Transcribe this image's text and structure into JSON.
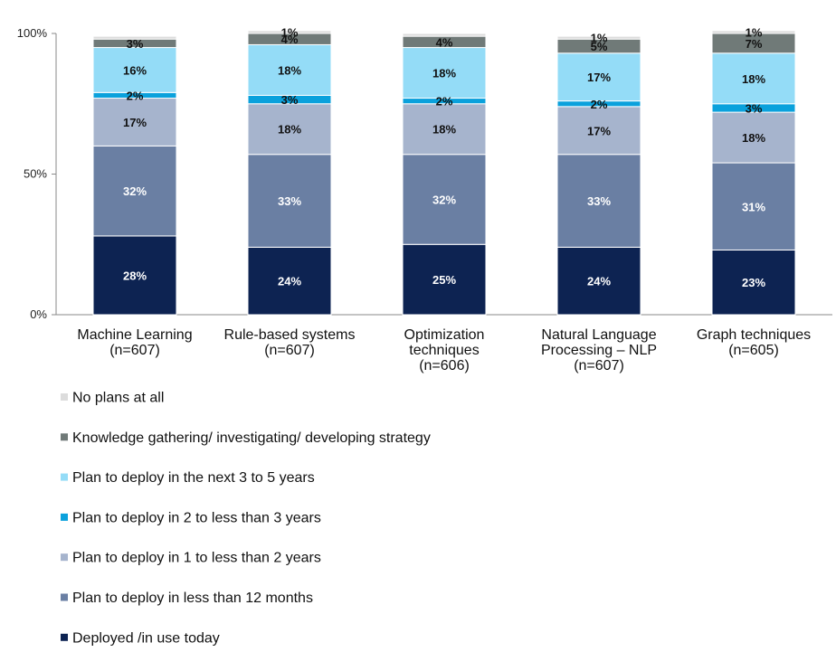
{
  "chart_data": {
    "type": "bar",
    "stacked": true,
    "orientation": "vertical",
    "legend_placement": "bottom-left",
    "grid": false,
    "ylim": [
      0,
      100
    ],
    "yticks": [
      {
        "value": 0,
        "label": "0%"
      },
      {
        "value": 50,
        "label": "50%"
      },
      {
        "value": 100,
        "label": "100%"
      }
    ],
    "categories": [
      [
        "Machine Learning",
        "(n=607)"
      ],
      [
        "Rule-based systems",
        "(n=607)"
      ],
      [
        "Optimization",
        "techniques",
        "(n=606)"
      ],
      [
        "Natural Language",
        "Processing – NLP",
        "(n=607)"
      ],
      [
        "Graph techniques",
        "(n=605)"
      ]
    ],
    "series": [
      {
        "name": "Deployed /in use today",
        "color": "#0d2352",
        "label_color": "#ffffff",
        "values": [
          28,
          24,
          25,
          24,
          23
        ],
        "labels": [
          "28%",
          "24%",
          "25%",
          "24%",
          "23%"
        ]
      },
      {
        "name": "Plan to deploy in less than 12 months",
        "color": "#6a7fa3",
        "label_color": "#ffffff",
        "values": [
          32,
          33,
          32,
          33,
          31
        ],
        "labels": [
          "32%",
          "33%",
          "32%",
          "33%",
          "31%"
        ]
      },
      {
        "name": "Plan to deploy in 1 to less than 2 years",
        "color": "#a6b4cd",
        "label_color": "#111111",
        "values": [
          17,
          18,
          18,
          17,
          18
        ],
        "labels": [
          "17%",
          "18%",
          "18%",
          "17%",
          "18%"
        ]
      },
      {
        "name": "Plan to deploy in 2 to less than 3 years",
        "color": "#0aa1dc",
        "label_color": "#111111",
        "values": [
          2,
          3,
          2,
          2,
          3
        ],
        "labels": [
          "2%",
          "3%",
          "2%",
          "2%",
          "3%"
        ]
      },
      {
        "name": "Plan to deploy in the next 3 to 5 years",
        "color": "#94dcf7",
        "label_color": "#111111",
        "values": [
          16,
          18,
          18,
          17,
          18
        ],
        "labels": [
          "16%",
          "18%",
          "18%",
          "17%",
          "18%"
        ]
      },
      {
        "name": "Knowledge gathering/ investigating/ developing strategy",
        "color": "#707a78",
        "label_color": "#111111",
        "values": [
          3,
          4,
          4,
          5,
          7
        ],
        "labels": [
          "3%",
          "4%",
          "4%",
          "5%",
          "7%"
        ]
      },
      {
        "name": "No plans at all",
        "color": "#dcdcdc",
        "label_color": "#111111",
        "values": [
          1,
          1,
          1,
          1,
          1
        ],
        "labels": [
          "",
          "1%",
          "",
          "1%",
          "1%"
        ]
      }
    ],
    "legend_order": [
      6,
      5,
      4,
      3,
      2,
      1,
      0
    ]
  }
}
